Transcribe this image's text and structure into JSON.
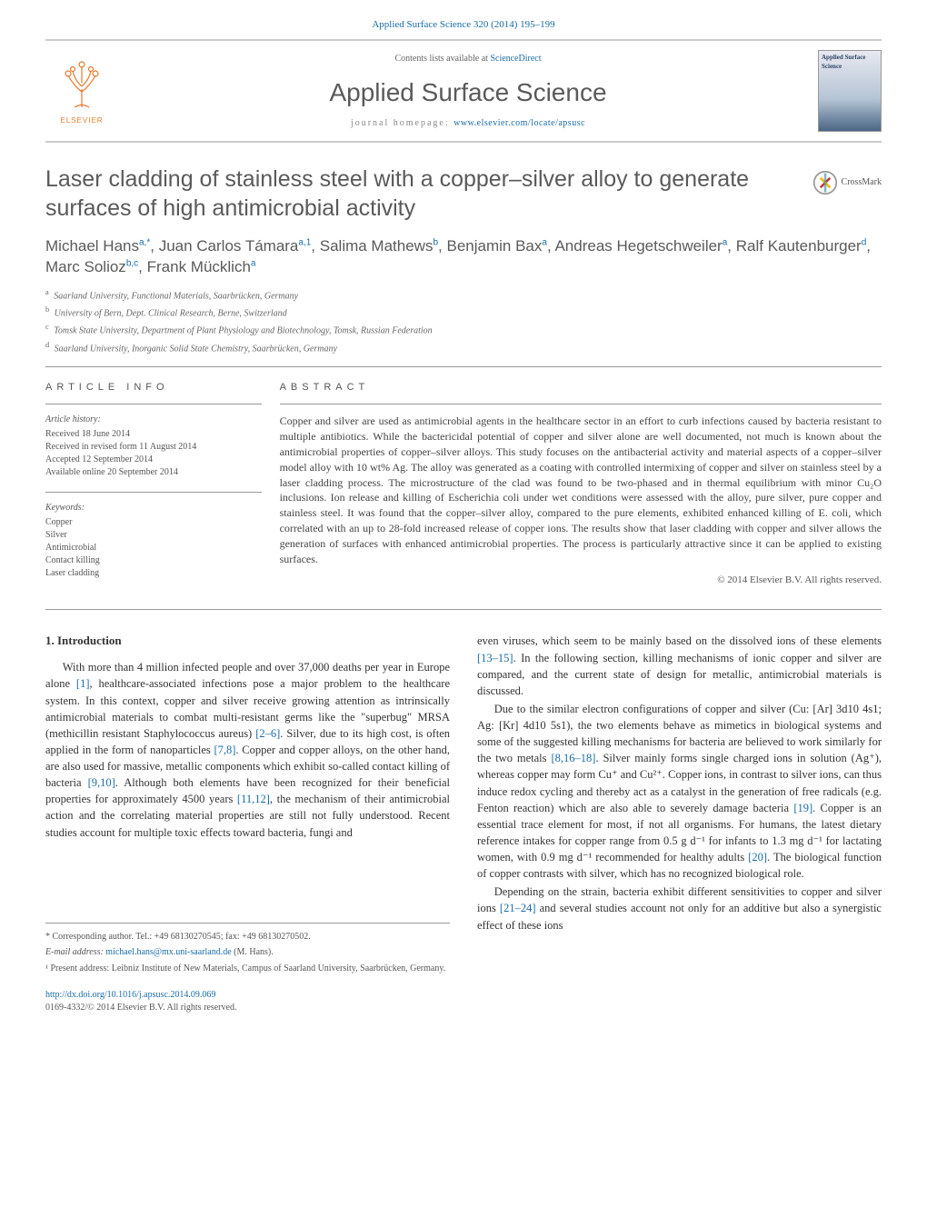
{
  "citation": "Applied Surface Science 320 (2014) 195–199",
  "banner": {
    "contents_prefix": "Contents lists available at ",
    "contents_link": "ScienceDirect",
    "journal": "Applied Surface Science",
    "homepage_prefix": "journal homepage: ",
    "homepage_url": "www.elsevier.com/locate/apsusc",
    "publisher_logo_text": "ELSEVIER",
    "cover_title": "Applied Surface Science"
  },
  "title": "Laser cladding of stainless steel with a copper–silver alloy to generate surfaces of high antimicrobial activity",
  "crossmark_label": "CrossMark",
  "authors": [
    {
      "name": "Michael Hans",
      "affil": "a,",
      "marks": "*"
    },
    {
      "name": "Juan Carlos Támara",
      "affil": "a,",
      "marks": "1"
    },
    {
      "name": "Salima Mathews",
      "affil": "b",
      "marks": ""
    },
    {
      "name": "Benjamin Bax",
      "affil": "a",
      "marks": ""
    },
    {
      "name": "Andreas Hegetschweiler",
      "affil": "a",
      "marks": ""
    },
    {
      "name": "Ralf Kautenburger",
      "affil": "d",
      "marks": ""
    },
    {
      "name": "Marc Solioz",
      "affil": "b,c",
      "marks": ""
    },
    {
      "name": "Frank Mücklich",
      "affil": "a",
      "marks": ""
    }
  ],
  "affiliations": [
    {
      "key": "a",
      "text": "Saarland University, Functional Materials, Saarbrücken, Germany"
    },
    {
      "key": "b",
      "text": "University of Bern, Dept. Clinical Research, Berne, Switzerland"
    },
    {
      "key": "c",
      "text": "Tomsk State University, Department of Plant Physiology and Biotechnology, Tomsk, Russian Federation"
    },
    {
      "key": "d",
      "text": "Saarland University, Inorganic Solid State Chemistry, Saarbrücken, Germany"
    }
  ],
  "article_info": {
    "heading": "article info",
    "history_hdr": "Article history:",
    "history": [
      "Received 18 June 2014",
      "Received in revised form 11 August 2014",
      "Accepted 12 September 2014",
      "Available online 20 September 2014"
    ],
    "keywords_hdr": "Keywords:",
    "keywords": [
      "Copper",
      "Silver",
      "Antimicrobial",
      "Contact killing",
      "Laser cladding"
    ]
  },
  "abstract": {
    "heading": "abstract",
    "text": "Copper and silver are used as antimicrobial agents in the healthcare sector in an effort to curb infections caused by bacteria resistant to multiple antibiotics. While the bactericidal potential of copper and silver alone are well documented, not much is known about the antimicrobial properties of copper–silver alloys. This study focuses on the antibacterial activity and material aspects of a copper–silver model alloy with 10 wt% Ag. The alloy was generated as a coating with controlled intermixing of copper and silver on stainless steel by a laser cladding process. The microstructure of the clad was found to be two-phased and in thermal equilibrium with minor Cu₂O inclusions. Ion release and killing of Escherichia coli under wet conditions were assessed with the alloy, pure silver, pure copper and stainless steel. It was found that the copper–silver alloy, compared to the pure elements, exhibited enhanced killing of E. coli, which correlated with an up to 28-fold increased release of copper ions. The results show that laser cladding with copper and silver allows the generation of surfaces with enhanced antimicrobial properties. The process is particularly attractive since it can be applied to existing surfaces.",
    "copyright": "© 2014 Elsevier B.V. All rights reserved."
  },
  "section1": {
    "heading": "1.  Introduction",
    "p1a": "With more than 4 million infected people and over 37,000 deaths per year in Europe alone ",
    "p1b": ", healthcare-associated infections pose a major problem to the healthcare system. In this context, copper and silver receive growing attention as intrinsically antimicrobial materials to combat multi-resistant germs like the \"superbug\" MRSA (methicillin resistant Staphylococcus aureus) ",
    "p1c": ". Silver, due to its high cost, is often applied in the form of nanoparticles ",
    "p1d": ". Copper and copper alloys, on the other hand, are also used for massive, metallic components which exhibit so-called contact killing of bacteria ",
    "p1e": ". Although both elements have been recognized for their beneficial properties for approximately 4500 years ",
    "p1f": ", the mechanism of their antimicrobial action and the correlating material properties are still not fully understood. Recent studies account for multiple toxic effects toward bacteria, fungi and",
    "c1": "[1]",
    "c2": "[2–6]",
    "c3": "[7,8]",
    "c4": "[9,10]",
    "c5": "[11,12]",
    "p2a": "even viruses, which seem to be mainly based on the dissolved ions of these elements ",
    "p2b": ". In the following section, killing mechanisms of ionic copper and silver are compared, and the current state of design for metallic, antimicrobial materials is discussed.",
    "c6": "[13–15]",
    "p3a": "Due to the similar electron configurations of copper and silver (Cu: [Ar] 3d10 4s1; Ag: [Kr] 4d10 5s1), the two elements behave as mimetics in biological systems and some of the suggested killing mechanisms for bacteria are believed to work similarly for the two metals ",
    "p3b": ". Silver mainly forms single charged ions in solution (Ag⁺), whereas copper may form Cu⁺ and Cu²⁺. Copper ions, in contrast to silver ions, can thus induce redox cycling and thereby act as a catalyst in the generation of free radicals (e.g. Fenton reaction) which are also able to severely damage bacteria ",
    "p3c": ". Copper is an essential trace element for most, if not all organisms. For humans, the latest dietary reference intakes for copper range from 0.5 g d⁻¹ for infants to 1.3 mg d⁻¹ for lactating women, with 0.9 mg d⁻¹ recommended for healthy adults ",
    "p3d": ". The biological function of copper contrasts with silver, which has no recognized biological role.",
    "c7": "[8,16–18]",
    "c8": "[19]",
    "c9": "[20]",
    "p4a": "Depending on the strain, bacteria exhibit different sensitivities to copper and silver ions ",
    "p4b": " and several studies account not only for an additive but also a synergistic effect of these ions",
    "c10": "[21–24]"
  },
  "footnotes": {
    "corr": "* Corresponding author. Tel.: +49 68130270545; fax: +49 68130270502.",
    "email_label": "E-mail address: ",
    "email": "michael.hans@mx.uni-saarland.de",
    "email_who": " (M. Hans).",
    "note1": "¹ Present address: Leibniz Institute of New Materials, Campus of Saarland University, Saarbrücken, Germany."
  },
  "bottom": {
    "doi": "http://dx.doi.org/10.1016/j.apsusc.2014.09.069",
    "issn": "0169-4332/© 2014 Elsevier B.V. All rights reserved."
  },
  "colors": {
    "link": "#1a6ca8",
    "orange": "#e8792e",
    "heading": "#5a5a5a",
    "rule": "#999999"
  }
}
